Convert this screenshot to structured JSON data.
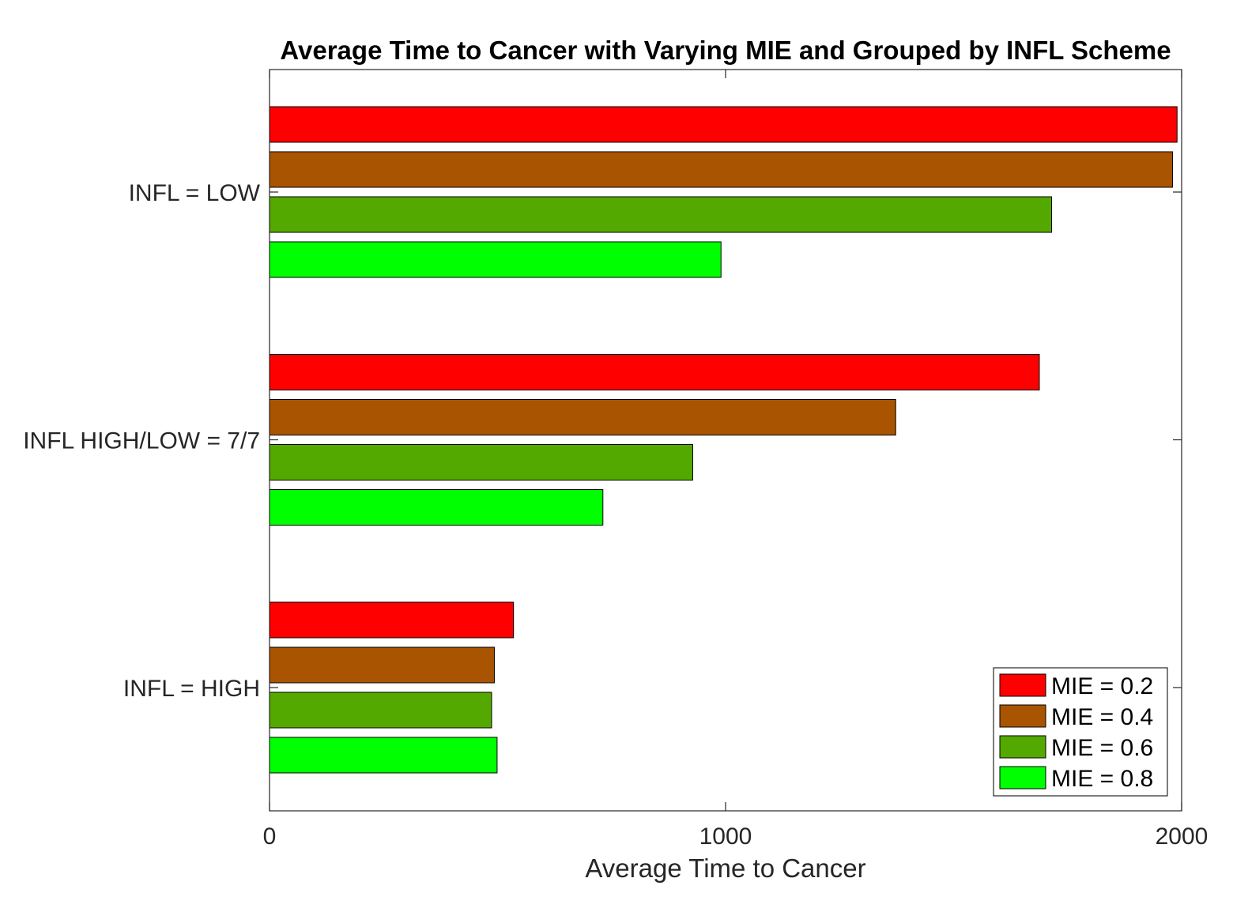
{
  "chart_data": {
    "type": "bar",
    "orientation": "horizontal",
    "title": "Average Time to Cancer with Varying MIE and Grouped by INFL Scheme",
    "xlabel": "Average Time to Cancer",
    "ylabel": "",
    "xlim": [
      0,
      2000
    ],
    "xticks": [
      0,
      1000,
      2000
    ],
    "xtick_labels": [
      "0",
      "1000",
      "2000"
    ],
    "grid": false,
    "legend_position": "bottom-right",
    "categories": [
      "INFL = LOW",
      "INFL HIGH/LOW = 7/7",
      "INFL = HIGH"
    ],
    "series": [
      {
        "name": "MIE = 0.2",
        "color": "#ff0000",
        "values": [
          1990,
          1688,
          535
        ]
      },
      {
        "name": "MIE = 0.4",
        "color": "#a95400",
        "values": [
          1980,
          1373,
          493
        ]
      },
      {
        "name": "MIE = 0.6",
        "color": "#54a900",
        "values": [
          1715,
          928,
          487
        ]
      },
      {
        "name": "MIE = 0.8",
        "color": "#00ff00",
        "values": [
          990,
          731,
          499
        ]
      }
    ]
  }
}
